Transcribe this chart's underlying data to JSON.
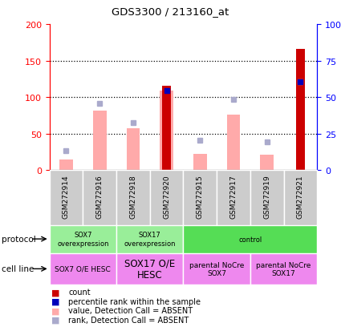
{
  "title": "GDS3300 / 213160_at",
  "samples": [
    "GSM272914",
    "GSM272916",
    "GSM272918",
    "GSM272920",
    "GSM272915",
    "GSM272917",
    "GSM272919",
    "GSM272921"
  ],
  "count_values": [
    null,
    null,
    null,
    115,
    null,
    null,
    null,
    166
  ],
  "pink_bar_values": [
    15,
    81,
    57,
    109,
    22,
    76,
    21,
    null
  ],
  "blue_square_y": [
    null,
    null,
    null,
    109,
    null,
    null,
    null,
    121
  ],
  "light_blue_square_y": [
    27,
    91,
    65,
    null,
    41,
    97,
    39,
    121
  ],
  "ylim": [
    0,
    200
  ],
  "right_ylim": [
    0,
    100
  ],
  "right_yticks": [
    0,
    25,
    50,
    75,
    100
  ],
  "right_yticklabels": [
    "0",
    "25",
    "50",
    "75",
    "100%"
  ],
  "yticks": [
    0,
    50,
    100,
    150,
    200
  ],
  "protocol_groups": [
    {
      "label": "SOX7\noverexpression",
      "start": 0,
      "end": 2,
      "color": "#99ee99"
    },
    {
      "label": "SOX17\noverexpression",
      "start": 2,
      "end": 4,
      "color": "#99ee99"
    },
    {
      "label": "control",
      "start": 4,
      "end": 8,
      "color": "#55dd55"
    }
  ],
  "cellline_groups": [
    {
      "label": "SOX7 O/E HESC",
      "start": 0,
      "end": 2,
      "color": "#ee88ee",
      "fontsize": 6.5,
      "bold": false
    },
    {
      "label": "SOX17 O/E\nHESC",
      "start": 2,
      "end": 4,
      "color": "#ee88ee",
      "fontsize": 8.5,
      "bold": false
    },
    {
      "label": "parental NoCre\nSOX7",
      "start": 4,
      "end": 6,
      "color": "#ee88ee",
      "fontsize": 6.5,
      "bold": false
    },
    {
      "label": "parental NoCre\nSOX17",
      "start": 6,
      "end": 8,
      "color": "#ee88ee",
      "fontsize": 6.5,
      "bold": false
    }
  ],
  "bar_color_red": "#cc0000",
  "bar_color_pink": "#ffaaaa",
  "square_color_blue": "#0000bb",
  "square_color_lightblue": "#aaaacc",
  "sample_box_color": "#cccccc"
}
